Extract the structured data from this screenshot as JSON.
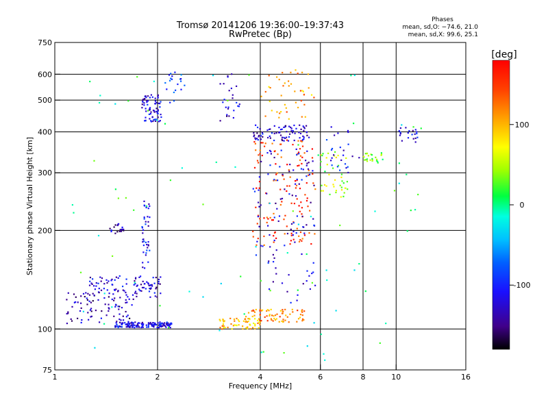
{
  "chart_data": {
    "type": "scatter",
    "title": "Tromsø 20141206 19:36:00–19:37:43",
    "subtitle": "RwPretec (Bp)",
    "xlabel": "Frequency [MHz]",
    "ylabel": "Stationary phase Virtual Height [km]",
    "x_scale": "log",
    "y_scale": "log",
    "xlim": [
      1,
      16
    ],
    "ylim": [
      75,
      750
    ],
    "x_ticks": [
      {
        "value": 1,
        "label": "1"
      },
      {
        "value": 2,
        "label": "2"
      },
      {
        "value": 4,
        "label": "4"
      },
      {
        "value": 6,
        "label": "6"
      },
      {
        "value": 8,
        "label": "8"
      },
      {
        "value": 10,
        "label": "10"
      },
      {
        "value": 16,
        "label": "16"
      }
    ],
    "y_ticks": [
      {
        "value": 75,
        "label": "75"
      },
      {
        "value": 100,
        "label": "100"
      },
      {
        "value": 200,
        "label": "200"
      },
      {
        "value": 300,
        "label": "300"
      },
      {
        "value": 400,
        "label": "400"
      },
      {
        "value": 500,
        "label": "500"
      },
      {
        "value": 600,
        "label": "600"
      },
      {
        "value": 750,
        "label": "750"
      }
    ],
    "grid_x": [
      2,
      4,
      6,
      8,
      10
    ],
    "grid_y": [
      100,
      200,
      300,
      400,
      500,
      600
    ],
    "stats_header": "Phases",
    "stats": [
      "mean, sd,O: −74.6, 21.0",
      "mean, sd,X:  99.6, 25.1"
    ],
    "colorbar": {
      "unit": "[deg]",
      "range": [
        -180,
        180
      ],
      "ticks": [
        {
          "value": 100,
          "label": "100"
        },
        {
          "value": 0,
          "label": "0"
        },
        {
          "value": -100,
          "label": "-100"
        }
      ]
    },
    "clusters": [
      {
        "x": [
          1.5,
          2.2
        ],
        "y": [
          101,
          105
        ],
        "phase": -115,
        "n": 150
      },
      {
        "x": [
          1.08,
          1.7
        ],
        "y": [
          104,
          130
        ],
        "phase": -135,
        "n": 90
      },
      {
        "x": [
          1.25,
          1.65
        ],
        "y": [
          128,
          146
        ],
        "phase": -120,
        "n": 45
      },
      {
        "x": [
          1.7,
          2.05
        ],
        "y": [
          125,
          145
        ],
        "phase": -125,
        "n": 50
      },
      {
        "x": [
          1.45,
          1.6
        ],
        "y": [
          195,
          210
        ],
        "phase": -130,
        "n": 20
      },
      {
        "x": [
          1.8,
          1.9
        ],
        "y": [
          150,
          250
        ],
        "phase": -110,
        "n": 40
      },
      {
        "x": [
          1.8,
          2.05
        ],
        "y": [
          430,
          520
        ],
        "phase": -120,
        "n": 70
      },
      {
        "x": [
          2.1,
          2.4
        ],
        "y": [
          490,
          610
        ],
        "phase": -90,
        "n": 20
      },
      {
        "x": [
          3.05,
          3.5
        ],
        "y": [
          430,
          610
        ],
        "phase": -125,
        "n": 25
      },
      {
        "x": [
          3.0,
          4.0
        ],
        "y": [
          100,
          108
        ],
        "phase": 100,
        "n": 60
      },
      {
        "x": [
          3.8,
          5.6
        ],
        "y": [
          375,
          420
        ],
        "phase": -125,
        "n": 80
      },
      {
        "x": [
          3.8,
          5.8
        ],
        "y": [
          180,
          380
        ],
        "phase": 150,
        "n": 130
      },
      {
        "x": [
          3.8,
          5.8
        ],
        "y": [
          120,
          360
        ],
        "phase": -120,
        "n": 110
      },
      {
        "x": [
          3.6,
          5.4
        ],
        "y": [
          105,
          115
        ],
        "phase": 120,
        "n": 70
      },
      {
        "x": [
          4.0,
          5.8
        ],
        "y": [
          430,
          620
        ],
        "phase": 110,
        "n": 45
      },
      {
        "x": [
          6.0,
          7.2
        ],
        "y": [
          250,
          350
        ],
        "phase": 50,
        "n": 40
      },
      {
        "x": [
          6.2,
          8.0
        ],
        "y": [
          300,
          420
        ],
        "phase": -110,
        "n": 25
      },
      {
        "x": [
          8.0,
          9.2
        ],
        "y": [
          320,
          345
        ],
        "phase": 30,
        "n": 25
      },
      {
        "x": [
          10.2,
          11.6
        ],
        "y": [
          370,
          420
        ],
        "phase": -120,
        "n": 20
      },
      {
        "x": [
          1.0,
          12.0
        ],
        "y": [
          80,
          600
        ],
        "phase": 0,
        "n": 90
      }
    ]
  }
}
